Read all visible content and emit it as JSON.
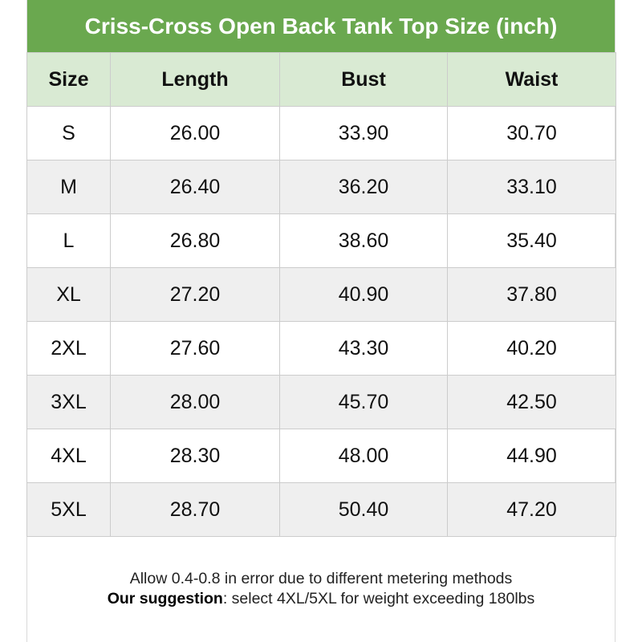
{
  "title": "Criss-Cross Open Back Tank Top Size (inch)",
  "headers": [
    "Size",
    "Length",
    "Bust",
    "Waist"
  ],
  "rows": [
    [
      "S",
      "26.00",
      "33.90",
      "30.70"
    ],
    [
      "M",
      "26.40",
      "36.20",
      "33.10"
    ],
    [
      "L",
      "26.80",
      "38.60",
      "35.40"
    ],
    [
      "XL",
      "27.20",
      "40.90",
      "37.80"
    ],
    [
      "2XL",
      "27.60",
      "43.30",
      "40.20"
    ],
    [
      "3XL",
      "28.00",
      "45.70",
      "42.50"
    ],
    [
      "4XL",
      "28.30",
      "48.00",
      "44.90"
    ],
    [
      "5XL",
      "28.70",
      "50.40",
      "47.20"
    ]
  ],
  "footer": {
    "note": "Allow 0.4-0.8 in error due to different metering methods",
    "suggestion_label": "Our suggestion",
    "suggestion_text": ": select 4XL/5XL for weight exceeding 180lbs"
  },
  "colors": {
    "title_bg": "#6aa84f",
    "header_bg": "#d9ead3",
    "alt_row_bg": "#efefef"
  }
}
